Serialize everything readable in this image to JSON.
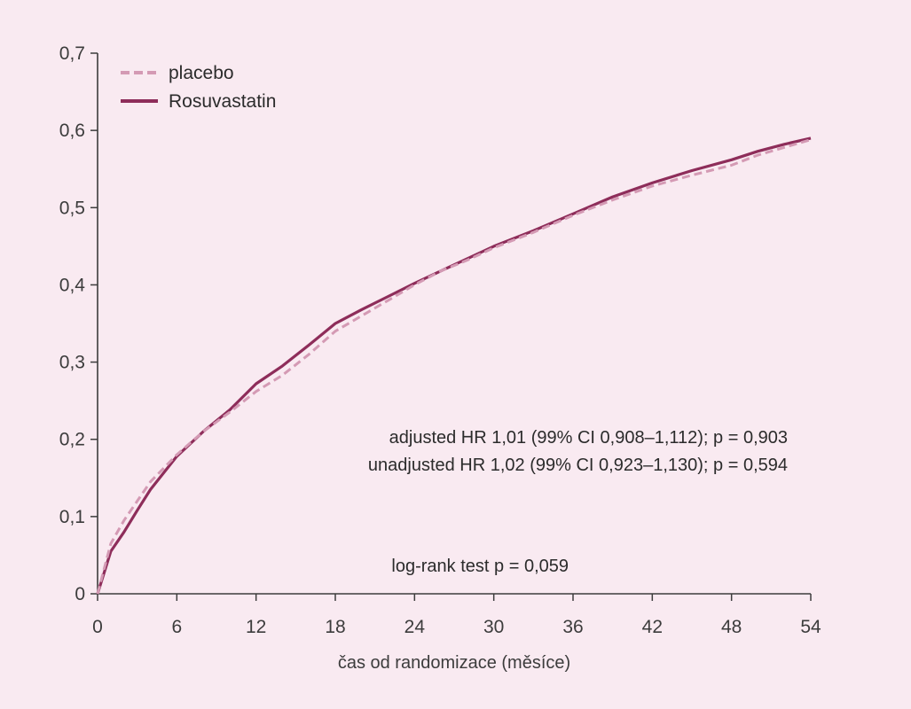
{
  "chart_data": {
    "type": "line",
    "xlabel": "čas od randomizace (měsíce)",
    "ylabel": "",
    "xlim": [
      0,
      54
    ],
    "ylim": [
      0,
      0.7
    ],
    "xticks": [
      0,
      6,
      12,
      18,
      24,
      30,
      36,
      42,
      48,
      54
    ],
    "xtick_labels": [
      "0",
      "6",
      "12",
      "18",
      "24",
      "30",
      "36",
      "42",
      "48",
      "54"
    ],
    "yticks": [
      0,
      0.1,
      0.2,
      0.3,
      0.4,
      0.5,
      0.6,
      0.7
    ],
    "ytick_labels": [
      "0",
      "0,1",
      "0,2",
      "0,3",
      "0,4",
      "0,5",
      "0,6",
      "0,7"
    ],
    "grid": false,
    "legend_position": "top-left",
    "series": [
      {
        "name": "placebo",
        "style": "dashed",
        "color": "#d49ab4",
        "x": [
          0,
          1,
          2,
          3,
          4,
          6,
          8,
          10,
          12,
          14,
          16,
          18,
          20,
          22,
          24,
          26,
          28,
          30,
          33,
          36,
          39,
          42,
          45,
          48,
          50,
          52,
          54
        ],
        "y": [
          0.0,
          0.065,
          0.095,
          0.12,
          0.145,
          0.18,
          0.21,
          0.235,
          0.262,
          0.283,
          0.31,
          0.34,
          0.36,
          0.38,
          0.4,
          0.418,
          0.432,
          0.448,
          0.468,
          0.49,
          0.51,
          0.528,
          0.542,
          0.555,
          0.568,
          0.578,
          0.588
        ]
      },
      {
        "name": "Rosuvastatin",
        "style": "solid",
        "color": "#8e2d5a",
        "x": [
          0,
          1,
          2,
          3,
          4,
          6,
          8,
          10,
          12,
          14,
          16,
          18,
          20,
          22,
          24,
          26,
          28,
          30,
          33,
          36,
          39,
          42,
          45,
          48,
          50,
          52,
          54
        ],
        "y": [
          0.0,
          0.055,
          0.08,
          0.108,
          0.135,
          0.178,
          0.21,
          0.238,
          0.272,
          0.295,
          0.322,
          0.35,
          0.368,
          0.385,
          0.402,
          0.418,
          0.434,
          0.45,
          0.47,
          0.492,
          0.514,
          0.532,
          0.548,
          0.562,
          0.573,
          0.582,
          0.59
        ]
      }
    ],
    "annotations": [
      "adjusted HR 1,01 (99% CI 0,908–1,112); p = 0,903",
      "unadjusted HR 1,02 (99% CI 0,923–1,130); p = 0,594",
      "log-rank test p = 0,059"
    ]
  }
}
